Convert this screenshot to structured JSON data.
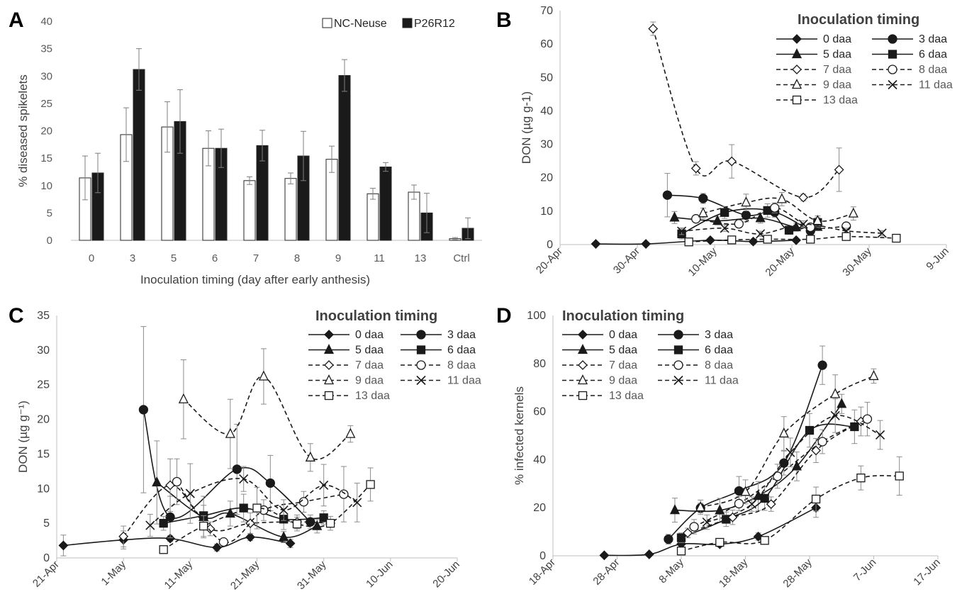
{
  "chart_data": [
    {
      "panel": "A",
      "type": "bar",
      "xlabel": "Inoculation timing (day after early anthesis)",
      "ylabel": "% diseased spikelets",
      "ylim": [
        0,
        40
      ],
      "yticks": [
        "0",
        "5",
        "10",
        "15",
        "20",
        "25",
        "30",
        "35",
        "40"
      ],
      "categories": [
        "0",
        "3",
        "5",
        "6",
        "7",
        "8",
        "9",
        "11",
        "13",
        "Ctrl"
      ],
      "legend_position": "top-right",
      "series": [
        {
          "name": "NC-Neuse",
          "fill": "#ffffff",
          "values": [
            11.4,
            19.3,
            20.7,
            16.8,
            10.9,
            11.3,
            14.8,
            8.5,
            8.8,
            0.3
          ],
          "err": [
            4.0,
            4.9,
            4.6,
            3.2,
            0.7,
            1.0,
            2.4,
            1.0,
            1.3,
            0.2
          ]
        },
        {
          "name": "P26R12",
          "fill": "#1a1a1a",
          "values": [
            12.3,
            31.2,
            21.7,
            16.8,
            17.3,
            15.4,
            30.1,
            13.4,
            5.0,
            2.2
          ],
          "err": [
            3.6,
            3.8,
            5.8,
            3.5,
            2.8,
            4.5,
            2.9,
            0.8,
            3.6,
            1.9
          ]
        }
      ]
    },
    {
      "panel": "B",
      "type": "line",
      "ylabel": "DON (µg g-1)",
      "ylim": [
        0,
        70
      ],
      "yticks": [
        "0",
        "10",
        "20",
        "30",
        "40",
        "50",
        "60",
        "70"
      ],
      "xticks": [
        "20-Apr",
        "30-Apr",
        "10-May",
        "20-May",
        "30-May",
        "9-Jun"
      ],
      "xlim": [
        -1,
        53
      ],
      "legend_title": "Inoculation timing",
      "series": [
        {
          "name": "0 daa",
          "marker": "diamond",
          "filled": true,
          "dash": false,
          "points": [
            [
              4,
              0.2
            ],
            [
              11,
              0.2
            ],
            [
              20,
              1.3
            ],
            [
              26,
              0.9
            ],
            [
              32,
              1.3
            ]
          ],
          "err": [
            0,
            0,
            0.3,
            0.2,
            0.3
          ]
        },
        {
          "name": "3 daa",
          "marker": "circle",
          "filled": true,
          "dash": false,
          "points": [
            [
              14,
              14.8
            ],
            [
              19,
              13.8
            ],
            [
              25,
              8.8
            ],
            [
              29,
              9.7
            ],
            [
              34,
              4.1
            ]
          ],
          "err": [
            6.5,
            1.5,
            2,
            1.5,
            1
          ]
        },
        {
          "name": "5 daa",
          "marker": "triangle",
          "filled": true,
          "dash": false,
          "points": [
            [
              15,
              8.1
            ],
            [
              21,
              7.1
            ],
            [
              27,
              7.9
            ],
            [
              32,
              5.2
            ],
            [
              35,
              5.3
            ]
          ],
          "err": [
            1.8,
            1.2,
            1.5,
            1.2,
            1
          ]
        },
        {
          "name": "6 daa",
          "marker": "square",
          "filled": true,
          "dash": false,
          "points": [
            [
              16,
              3.2
            ],
            [
              22,
              9.6
            ],
            [
              28,
              10.2
            ],
            [
              31,
              4.3
            ],
            [
              35,
              6.6
            ]
          ],
          "err": [
            1.5,
            1.8,
            2,
            1.2,
            1.5
          ]
        },
        {
          "name": "7 daa",
          "marker": "diamond",
          "filled": false,
          "dash": true,
          "points": [
            [
              12,
              64.6
            ],
            [
              18,
              22.8
            ],
            [
              23,
              24.9
            ],
            [
              33,
              14.1
            ],
            [
              38,
              22.4
            ]
          ],
          "err": [
            2,
            2,
            5,
            1,
            6.5
          ]
        },
        {
          "name": "8 daa",
          "marker": "circle",
          "filled": false,
          "dash": true,
          "points": [
            [
              18,
              7.7
            ],
            [
              24,
              6.2
            ],
            [
              29,
              11
            ],
            [
              34,
              5.2
            ],
            [
              39,
              5.5
            ]
          ],
          "err": [
            1,
            1,
            1.5,
            1,
            1
          ]
        },
        {
          "name": "9 daa",
          "marker": "triangle",
          "filled": false,
          "dash": true,
          "points": [
            [
              19,
              9.4
            ],
            [
              25,
              12.6
            ],
            [
              30,
              13.6
            ],
            [
              35,
              7.1
            ],
            [
              40,
              9.3
            ]
          ],
          "err": [
            1.5,
            2.5,
            2,
            1.5,
            2
          ]
        },
        {
          "name": "11 daa",
          "marker": "x",
          "filled": false,
          "dash": true,
          "points": [
            [
              16,
              4
            ],
            [
              22,
              4.9
            ],
            [
              27,
              3.2
            ],
            [
              33,
              6.1
            ],
            [
              39,
              4.1
            ],
            [
              44,
              3.4
            ]
          ],
          "err": [
            1,
            1,
            0.8,
            1,
            0.8,
            0.8
          ]
        },
        {
          "name": "13 daa",
          "marker": "square",
          "filled": false,
          "dash": true,
          "points": [
            [
              17,
              0.8
            ],
            [
              23,
              1.4
            ],
            [
              28,
              1.6
            ],
            [
              34,
              1.6
            ],
            [
              39,
              2.4
            ],
            [
              46,
              1.9
            ]
          ],
          "err": [
            0.4,
            0.4,
            0.4,
            0.4,
            0.5,
            0.4
          ]
        }
      ]
    },
    {
      "panel": "C",
      "type": "line",
      "ylabel": "DON (µg g⁻¹)",
      "ylim": [
        0,
        35
      ],
      "yticks": [
        "0",
        "5",
        "10",
        "15",
        "20",
        "25",
        "30",
        "35"
      ],
      "xticks": [
        "21-Apr",
        "1-May",
        "11-May",
        "21-May",
        "31-May",
        "10-Jun",
        "20-Jun"
      ],
      "xlim": [
        0,
        60
      ],
      "legend_title": "Inoculation timing",
      "series": [
        {
          "name": "0 daa",
          "marker": "diamond",
          "filled": true,
          "dash": false,
          "points": [
            [
              1,
              1.8
            ],
            [
              10,
              2.6
            ],
            [
              17,
              2.8
            ],
            [
              24,
              1.5
            ],
            [
              29,
              3
            ],
            [
              35,
              2.1
            ]
          ],
          "err": [
            1.5,
            1.3,
            0.4,
            0.5,
            0.5,
            0.6
          ]
        },
        {
          "name": "3 daa",
          "marker": "circle",
          "filled": true,
          "dash": false,
          "points": [
            [
              13,
              21.4
            ],
            [
              17,
              5.9
            ],
            [
              27,
              12.8
            ],
            [
              32,
              10.8
            ],
            [
              38,
              5.2
            ]
          ],
          "err": [
            12,
            3,
            6.5,
            4,
            1
          ]
        },
        {
          "name": "5 daa",
          "marker": "triangle",
          "filled": true,
          "dash": false,
          "points": [
            [
              15,
              10.9
            ],
            [
              22,
              5.9
            ],
            [
              26,
              6.4
            ],
            [
              34,
              3
            ],
            [
              39,
              4.6
            ]
          ],
          "err": [
            6,
            3,
            1.8,
            0.8,
            1
          ]
        },
        {
          "name": "6 daa",
          "marker": "square",
          "filled": true,
          "dash": false,
          "points": [
            [
              16,
              5
            ],
            [
              22,
              6.1
            ],
            [
              28,
              7.2
            ],
            [
              34,
              5.6
            ],
            [
              40,
              5.8
            ]
          ],
          "err": [
            1,
            1.5,
            2,
            1.5,
            1
          ]
        },
        {
          "name": "7 daa",
          "marker": "diamond",
          "filled": false,
          "dash": true,
          "points": [
            [
              10,
              3.1
            ],
            [
              17,
              10.5
            ],
            [
              23,
              4.2
            ],
            [
              29,
              5
            ],
            [
              36,
              5.2
            ],
            [
              41,
              5
            ]
          ],
          "err": [
            1.5,
            3.8,
            1,
            1.5,
            1,
            0.5
          ]
        },
        {
          "name": "8 daa",
          "marker": "circle",
          "filled": false,
          "dash": true,
          "points": [
            [
              18,
              11
            ],
            [
              25,
              2.3
            ],
            [
              31,
              6.9
            ],
            [
              37,
              8.1
            ],
            [
              43,
              9.2
            ]
          ],
          "err": [
            3.3,
            0.5,
            1.5,
            1.5,
            4
          ]
        },
        {
          "name": "9 daa",
          "marker": "triangle",
          "filled": false,
          "dash": true,
          "points": [
            [
              19,
              22.9
            ],
            [
              26,
              17.9
            ],
            [
              31,
              26.2
            ],
            [
              38,
              14.5
            ],
            [
              44,
              17.9
            ]
          ],
          "err": [
            5.7,
            5,
            4,
            2,
            1.2
          ]
        },
        {
          "name": "11 daa",
          "marker": "x",
          "filled": false,
          "dash": true,
          "points": [
            [
              14,
              4.7
            ],
            [
              20,
              9.3
            ],
            [
              28,
              11.4
            ],
            [
              34,
              6.9
            ],
            [
              40,
              10.5
            ],
            [
              45,
              8
            ]
          ],
          "err": [
            1.6,
            4.3,
            1.8,
            1.5,
            3,
            2.8
          ]
        },
        {
          "name": "13 daa",
          "marker": "square",
          "filled": false,
          "dash": true,
          "points": [
            [
              16,
              1.2
            ],
            [
              22,
              4.6
            ],
            [
              30,
              7.2
            ],
            [
              36,
              4.9
            ],
            [
              41,
              5
            ],
            [
              47,
              10.6
            ]
          ],
          "err": [
            0.4,
            1.5,
            3,
            1,
            1,
            2.4
          ]
        }
      ]
    },
    {
      "panel": "D",
      "type": "line",
      "ylabel": "% infected kernels",
      "ylim": [
        0,
        100
      ],
      "yticks": [
        "0",
        "20",
        "40",
        "60",
        "80",
        "100"
      ],
      "xticks": [
        "18-Apr",
        "28-Apr",
        "8-May",
        "18-May",
        "28-May",
        "7-Jun",
        "17-Jun"
      ],
      "xlim": [
        0,
        60
      ],
      "legend_title": "Inoculation timing",
      "series": [
        {
          "name": "0 daa",
          "marker": "diamond",
          "filled": true,
          "dash": false,
          "points": [
            [
              8,
              0.2
            ],
            [
              15,
              0.6
            ],
            [
              20,
              4.9
            ],
            [
              26,
              4.8
            ],
            [
              32,
              8
            ],
            [
              41,
              20
            ]
          ],
          "err": [
            0,
            0,
            1,
            1,
            1.5,
            4
          ]
        },
        {
          "name": "3 daa",
          "marker": "circle",
          "filled": true,
          "dash": false,
          "points": [
            [
              18,
              6.9
            ],
            [
              23,
              19.9
            ],
            [
              29,
              27
            ],
            [
              36,
              38.6
            ],
            [
              42,
              79.3
            ]
          ],
          "err": [
            2,
            2,
            6,
            5,
            8
          ]
        },
        {
          "name": "5 daa",
          "marker": "triangle",
          "filled": true,
          "dash": false,
          "points": [
            [
              19,
              19
            ],
            [
              26,
              18.9
            ],
            [
              32,
              24.9
            ],
            [
              38,
              37.2
            ],
            [
              45,
              63.2
            ]
          ],
          "err": [
            5,
            5,
            6,
            6,
            4
          ]
        },
        {
          "name": "6 daa",
          "marker": "square",
          "filled": true,
          "dash": false,
          "points": [
            [
              20,
              7.5
            ],
            [
              27,
              15.2
            ],
            [
              33,
              23.9
            ],
            [
              40,
              52.2
            ],
            [
              47,
              53.7
            ]
          ],
          "err": [
            2,
            3,
            5,
            7,
            7
          ]
        },
        {
          "name": "7 daa",
          "marker": "diamond",
          "filled": false,
          "dash": true,
          "points": [
            [
              21,
              9.5
            ],
            [
              28,
              16
            ],
            [
              34,
              21.5
            ],
            [
              41,
              43.8
            ],
            [
              48,
              55.9
            ]
          ],
          "err": [
            2,
            3,
            3,
            5,
            6
          ]
        },
        {
          "name": "8 daa",
          "marker": "circle",
          "filled": false,
          "dash": true,
          "points": [
            [
              22,
              12.1
            ],
            [
              29,
              21.7
            ],
            [
              35,
              33.1
            ],
            [
              42,
              47.5
            ],
            [
              49,
              56.9
            ]
          ],
          "err": [
            3,
            3,
            5,
            5,
            7
          ]
        },
        {
          "name": "9 daa",
          "marker": "triangle",
          "filled": false,
          "dash": true,
          "points": [
            [
              23,
              20.2
            ],
            [
              30,
              26.6
            ],
            [
              36,
              50.9
            ],
            [
              44,
              67.3
            ],
            [
              50,
              74.8
            ]
          ],
          "err": [
            3,
            5,
            7,
            8,
            3
          ]
        },
        {
          "name": "11 daa",
          "marker": "x",
          "filled": false,
          "dash": true,
          "points": [
            [
              24,
              14
            ],
            [
              31,
              21.5
            ],
            [
              37,
              43
            ],
            [
              44,
              58.3
            ],
            [
              51,
              50.3
            ]
          ],
          "err": [
            3,
            3,
            6,
            7,
            6
          ]
        },
        {
          "name": "13 daa",
          "marker": "square",
          "filled": false,
          "dash": true,
          "points": [
            [
              20,
              2
            ],
            [
              26,
              5.6
            ],
            [
              33,
              6.4
            ],
            [
              41,
              23.6
            ],
            [
              48,
              32.4
            ],
            [
              54,
              33.2
            ]
          ],
          "err": [
            1,
            1,
            1.5,
            5,
            5,
            8
          ]
        }
      ]
    }
  ]
}
